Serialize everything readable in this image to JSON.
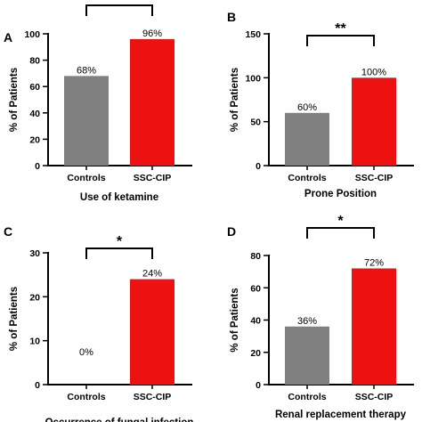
{
  "chart_data": [
    {
      "type": "bar",
      "panel": "A",
      "categories": [
        "Controls",
        "SSC-CIP"
      ],
      "values": [
        68,
        96
      ],
      "value_labels": [
        "68%",
        "96%"
      ],
      "colors": [
        "#808080",
        "#ee1111"
      ],
      "xlabel": "Use of ketamine",
      "ylabel": "% of Patients",
      "ylim": [
        0,
        100
      ],
      "yticks": [
        0,
        20,
        40,
        60,
        80,
        100
      ],
      "significance": ""
    },
    {
      "type": "bar",
      "panel": "B",
      "categories": [
        "Controls",
        "SSC-CIP"
      ],
      "values": [
        60,
        100
      ],
      "value_labels": [
        "60%",
        "100%"
      ],
      "colors": [
        "#808080",
        "#ee1111"
      ],
      "xlabel": "Prone Position",
      "ylabel": "% of Patients",
      "ylim": [
        0,
        150
      ],
      "yticks": [
        0,
        50,
        100,
        150
      ],
      "significance": "**"
    },
    {
      "type": "bar",
      "panel": "C",
      "categories": [
        "Controls",
        "SSC-CIP"
      ],
      "values": [
        0,
        24
      ],
      "value_labels": [
        "0%",
        "24%"
      ],
      "colors": [
        "#808080",
        "#ee1111"
      ],
      "xlabel": "Occurrence of fungal infection",
      "ylabel": "% of Patients",
      "ylim": [
        0,
        30
      ],
      "yticks": [
        0,
        10,
        20,
        30
      ],
      "significance": "*"
    },
    {
      "type": "bar",
      "panel": "D",
      "categories": [
        "Controls",
        "SSC-CIP"
      ],
      "values": [
        36,
        72
      ],
      "value_labels": [
        "36%",
        "72%"
      ],
      "colors": [
        "#808080",
        "#ee1111"
      ],
      "xlabel": "Renal replacement therapy",
      "ylabel": "% of Patients",
      "ylim": [
        0,
        80
      ],
      "yticks": [
        0,
        20,
        40,
        60,
        80
      ],
      "significance": "*"
    }
  ]
}
